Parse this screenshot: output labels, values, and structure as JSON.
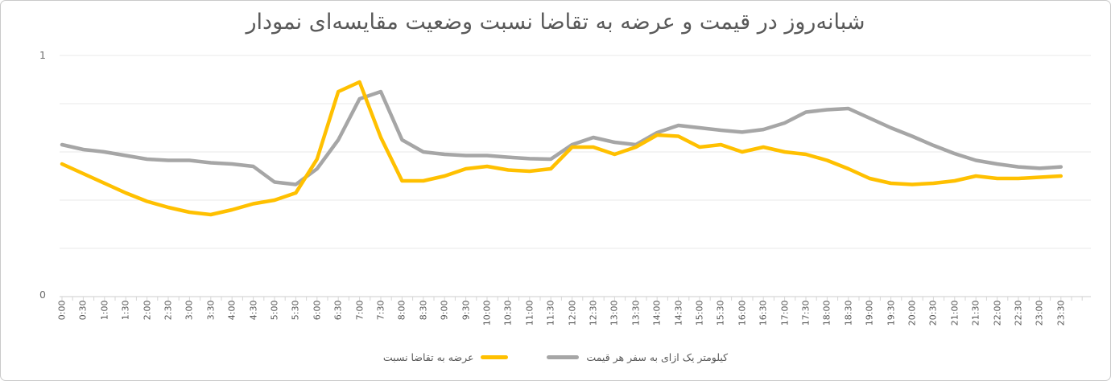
{
  "chart_data": {
    "type": "line",
    "title": "نمودار مقایسه‌ای وضعیت نسبت تقاضا به عرضه و قیمت در شبانه‌روز",
    "categories": [
      "0:00",
      "0:30",
      "1:00",
      "1:30",
      "2:00",
      "2:30",
      "3:00",
      "3:30",
      "4:00",
      "4:30",
      "5:00",
      "5:30",
      "6:00",
      "6:30",
      "7:00",
      "7:30",
      "8:00",
      "8:30",
      "9:00",
      "9:30",
      "10:00",
      "10:30",
      "11:00",
      "11:30",
      "12:00",
      "12:30",
      "13:00",
      "13:30",
      "14:00",
      "14:30",
      "15:00",
      "15:30",
      "16:00",
      "16:30",
      "17:00",
      "17:30",
      "18:00",
      "18:30",
      "19:00",
      "19:30",
      "20:00",
      "20:30",
      "21:00",
      "21:30",
      "22:00",
      "22:30",
      "23:00",
      "23:30"
    ],
    "series": [
      {
        "name": "قیمت هر سفر به ازای یک کیلومتر",
        "color": "#a6a6a6",
        "values": [
          0.63,
          0.61,
          0.6,
          0.585,
          0.57,
          0.565,
          0.565,
          0.555,
          0.55,
          0.54,
          0.475,
          0.465,
          0.53,
          0.65,
          0.82,
          0.85,
          0.65,
          0.6,
          0.59,
          0.585,
          0.585,
          0.578,
          0.572,
          0.57,
          0.63,
          0.66,
          0.64,
          0.63,
          0.68,
          0.71,
          0.7,
          0.69,
          0.682,
          0.693,
          0.72,
          0.765,
          0.775,
          0.78,
          0.74,
          0.7,
          0.665,
          0.627,
          0.593,
          0.565,
          0.55,
          0.538,
          0.532,
          0.538
        ]
      },
      {
        "name": "نسبت تقاضا به عرضه",
        "color": "#ffc000",
        "values": [
          0.55,
          0.51,
          0.47,
          0.43,
          0.395,
          0.37,
          0.35,
          0.34,
          0.36,
          0.385,
          0.4,
          0.43,
          0.57,
          0.85,
          0.89,
          0.66,
          0.48,
          0.48,
          0.5,
          0.53,
          0.54,
          0.525,
          0.52,
          0.53,
          0.62,
          0.62,
          0.59,
          0.62,
          0.67,
          0.665,
          0.62,
          0.63,
          0.6,
          0.62,
          0.6,
          0.59,
          0.565,
          0.53,
          0.49,
          0.47,
          0.465,
          0.47,
          0.48,
          0.5,
          0.49,
          0.49,
          0.495,
          0.5
        ]
      }
    ],
    "ylim": [
      0,
      1
    ],
    "gridline_values": [
      0.2,
      0.4,
      0.6,
      0.8,
      1.0
    ],
    "grid_on": true,
    "legend_position": "bottom",
    "xlabel": "",
    "ylabel": "",
    "grid_color": "#e9e9e9",
    "axis_color": "#d6d6d6",
    "tick_label_color": "#595959"
  },
  "y_axis": {
    "max_label": "1",
    "min_label": "0"
  }
}
